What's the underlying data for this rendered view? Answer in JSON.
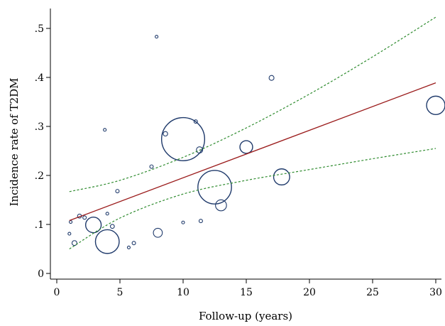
{
  "chart_data": {
    "type": "scatter",
    "title": "",
    "xlabel": "Follow-up (years)",
    "ylabel": "Incidence rate of T2DM",
    "xlim": [
      0,
      30
    ],
    "ylim": [
      0,
      0.5
    ],
    "x_ticks": [
      0,
      5,
      10,
      15,
      20,
      25,
      30
    ],
    "x_tick_labels": [
      "0",
      "5",
      "10",
      "15",
      "20",
      "25",
      "30"
    ],
    "y_ticks": [
      0,
      0.1,
      0.2,
      0.3,
      0.4,
      0.5
    ],
    "y_tick_labels": [
      "0",
      ".1",
      ".2",
      ".3",
      ".4",
      ".5"
    ],
    "grid": false,
    "points": [
      {
        "x": 1.0,
        "y": 0.081,
        "weight": 1
      },
      {
        "x": 1.1,
        "y": 0.105,
        "weight": 1
      },
      {
        "x": 1.4,
        "y": 0.062,
        "weight": 3
      },
      {
        "x": 1.8,
        "y": 0.117,
        "weight": 2
      },
      {
        "x": 2.2,
        "y": 0.114,
        "weight": 1.5
      },
      {
        "x": 2.9,
        "y": 0.099,
        "weight": 30
      },
      {
        "x": 3.8,
        "y": 0.293,
        "weight": 1
      },
      {
        "x": 4.0,
        "y": 0.065,
        "weight": 70
      },
      {
        "x": 4.0,
        "y": 0.122,
        "weight": 1
      },
      {
        "x": 4.4,
        "y": 0.096,
        "weight": 2
      },
      {
        "x": 4.8,
        "y": 0.168,
        "weight": 1.5
      },
      {
        "x": 5.7,
        "y": 0.053,
        "weight": 1
      },
      {
        "x": 6.1,
        "y": 0.062,
        "weight": 1.5
      },
      {
        "x": 7.5,
        "y": 0.218,
        "weight": 1.5
      },
      {
        "x": 7.9,
        "y": 0.483,
        "weight": 1
      },
      {
        "x": 8.0,
        "y": 0.083,
        "weight": 10
      },
      {
        "x": 8.6,
        "y": 0.285,
        "weight": 2.5
      },
      {
        "x": 10.0,
        "y": 0.104,
        "weight": 1
      },
      {
        "x": 10.0,
        "y": 0.274,
        "weight": 230
      },
      {
        "x": 11.0,
        "y": 0.31,
        "weight": 1.5
      },
      {
        "x": 11.3,
        "y": 0.252,
        "weight": 5
      },
      {
        "x": 11.4,
        "y": 0.107,
        "weight": 1.5
      },
      {
        "x": 12.5,
        "y": 0.176,
        "weight": 140
      },
      {
        "x": 13.0,
        "y": 0.139,
        "weight": 15
      },
      {
        "x": 15.0,
        "y": 0.258,
        "weight": 20
      },
      {
        "x": 17.0,
        "y": 0.399,
        "weight": 3
      },
      {
        "x": 17.8,
        "y": 0.197,
        "weight": 32
      },
      {
        "x": 30.0,
        "y": 0.343,
        "weight": 42
      }
    ],
    "fit_line": {
      "x": [
        1,
        30
      ],
      "y": [
        0.108,
        0.389
      ]
    },
    "ci_upper": {
      "x": [
        1,
        5,
        10,
        15,
        20,
        25,
        30
      ],
      "y": [
        0.167,
        0.19,
        0.237,
        0.297,
        0.366,
        0.442,
        0.523
      ]
    },
    "ci_lower": {
      "x": [
        1,
        5,
        10,
        15,
        20,
        25,
        30
      ],
      "y": [
        0.05,
        0.113,
        0.162,
        0.19,
        0.212,
        0.234,
        0.255
      ]
    }
  },
  "colors": {
    "bubble": "#1f3a6b",
    "fit_line": "#9b1c1c",
    "ci_line": "#2e8b2e",
    "axis": "#000000"
  }
}
